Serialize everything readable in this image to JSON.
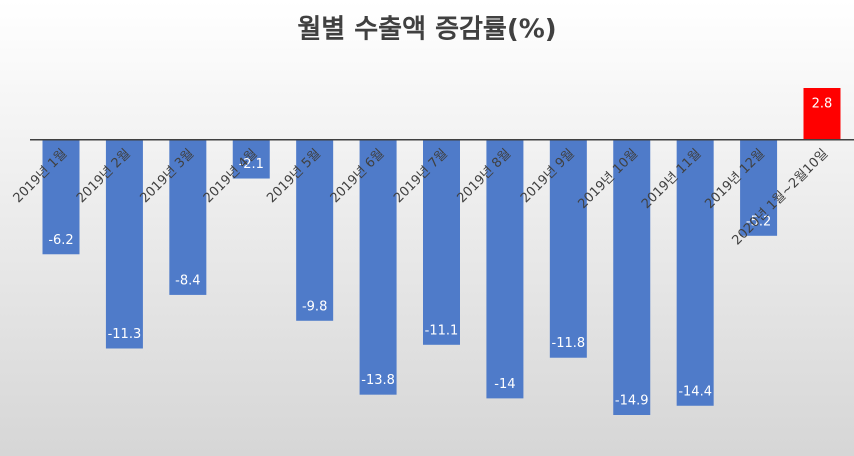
{
  "chart_data": {
    "type": "bar",
    "title": "월별 수출액 증감률(%)",
    "categories": [
      "2019년 1월",
      "2019년 2월",
      "2019년 3월",
      "2019년 4월",
      "2019년 5월",
      "2019년 6월",
      "2019년 7월",
      "2019년 8월",
      "2019년 9월",
      "2019년 10월",
      "2019년 11월",
      "2019년 12월",
      "2020년 1월~2월10일"
    ],
    "values": [
      -6.2,
      -11.3,
      -8.4,
      -2.1,
      -9.8,
      -13.8,
      -11.1,
      -14,
      -11.8,
      -14.9,
      -14.4,
      -5.2,
      2.8
    ],
    "colors": [
      "#4f7bc9",
      "#4f7bc9",
      "#4f7bc9",
      "#4f7bc9",
      "#4f7bc9",
      "#4f7bc9",
      "#4f7bc9",
      "#4f7bc9",
      "#4f7bc9",
      "#4f7bc9",
      "#4f7bc9",
      "#4f7bc9",
      "#ff0000"
    ]
  }
}
